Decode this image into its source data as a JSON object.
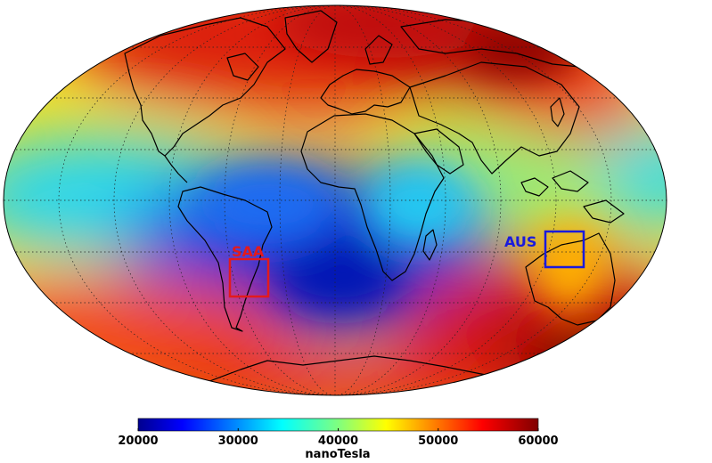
{
  "map": {
    "projection": "Mollweide",
    "graticule": "dotted",
    "regions": [
      {
        "label": "SAA",
        "color": "#e31a1c"
      },
      {
        "label": "AUS",
        "color": "#1a1adc"
      }
    ]
  },
  "colorbar": {
    "colormap": "jet",
    "min": 20000,
    "max": 60000,
    "ticks": [
      "20000",
      "30000",
      "40000",
      "50000",
      "60000"
    ],
    "label": "nanoTesla"
  }
}
